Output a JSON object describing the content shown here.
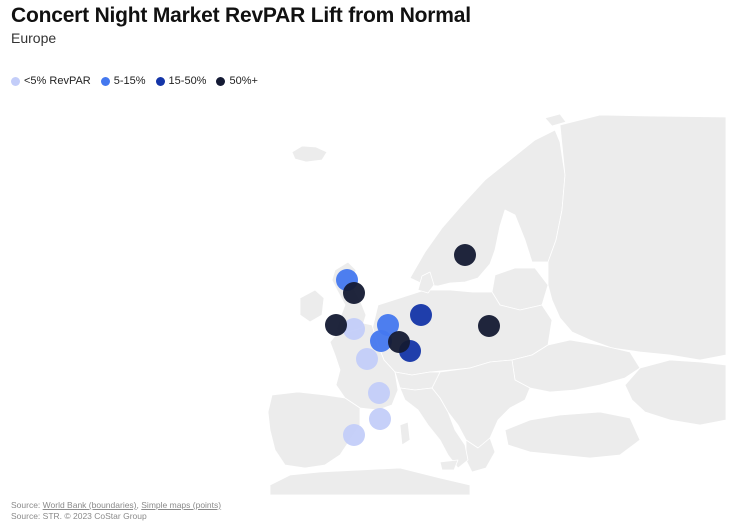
{
  "header": {
    "title": "Concert Night Market RevPAR Lift from Normal",
    "subtitle": "Europe"
  },
  "legend": [
    {
      "label": "<5% RevPAR",
      "color": "#c3cdf9"
    },
    {
      "label": "5-15%",
      "color": "#4478ef"
    },
    {
      "label": "15-50%",
      "color": "#1435a8"
    },
    {
      "label": "50%+",
      "color": "#141a33"
    }
  ],
  "footer": {
    "line1_prefix": "Source: ",
    "link1": "World Bank (boundaries)",
    "sep": ", ",
    "link2": "Simple maps (points)",
    "line2": "Source: STR. © 2023 CoStar Group"
  },
  "colors": {
    "land": "#ececec",
    "border": "#ffffff"
  },
  "points": [
    {
      "category": 3,
      "region": "scandinavia"
    },
    {
      "category": 1,
      "region": "north-britain"
    },
    {
      "category": 3,
      "region": "britain"
    },
    {
      "category": 3,
      "region": "ireland"
    },
    {
      "category": 0,
      "region": "britain-south"
    },
    {
      "category": 1,
      "region": "low-countries"
    },
    {
      "category": 1,
      "region": "belgium"
    },
    {
      "category": 2,
      "region": "germany-north"
    },
    {
      "category": 3,
      "region": "germany-west"
    },
    {
      "category": 2,
      "region": "germany-south"
    },
    {
      "category": 3,
      "region": "poland-east"
    },
    {
      "category": 0,
      "region": "france-west"
    },
    {
      "category": 0,
      "region": "france-south"
    },
    {
      "category": 0,
      "region": "iberia-east"
    },
    {
      "category": 0,
      "region": "iberia-north"
    }
  ]
}
